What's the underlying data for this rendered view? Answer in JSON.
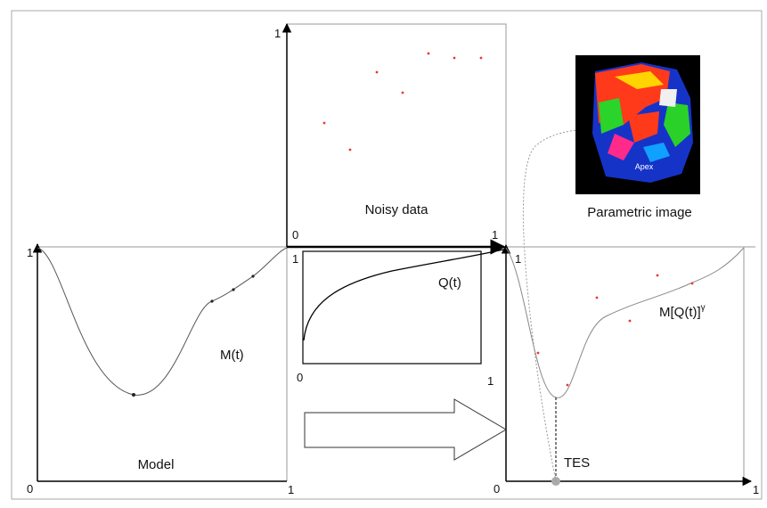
{
  "model_panel": {
    "title": "Model",
    "curve_label": "M(t)",
    "y_max_label": "1",
    "origin_label": "0",
    "x_max_label": "1"
  },
  "noisy_panel": {
    "title": "Noisy data",
    "y_max_label": "1",
    "origin_label": "0",
    "x_max_label": "1"
  },
  "q_panel": {
    "curve_label": "Q(t)",
    "y_max_label": "1",
    "origin_label": "0",
    "x_max_label": "1"
  },
  "result_panel": {
    "curve_label": "M[Q(t)]",
    "curve_label_superscript": "γ",
    "marker_label": "TES",
    "y_max_label": "1",
    "origin_label": "0",
    "x_max_label": "1"
  },
  "image": {
    "caption": "Parametric image",
    "inner_label": "Apex"
  }
}
